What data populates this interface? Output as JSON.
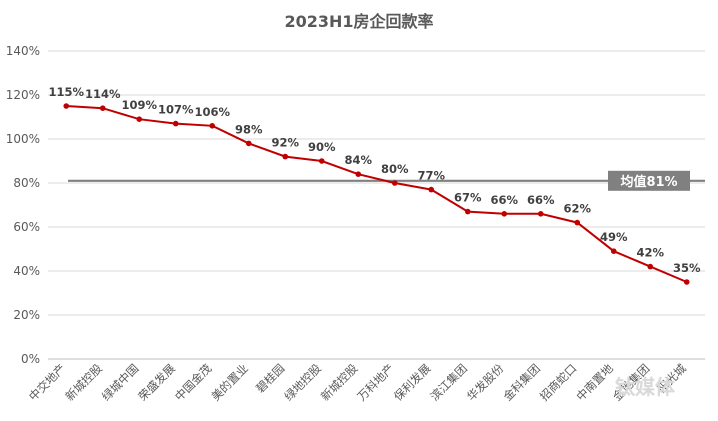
{
  "chart_data": {
    "type": "line",
    "title": "2023H1房企回款率",
    "categories": [
      "中交地产",
      "新城控股",
      "绿城中国",
      "荣盛发展",
      "中国金茂",
      "美的置业",
      "碧桂园",
      "绿地控股",
      "新城控股",
      "万科地产",
      "保利发展",
      "滨江集团",
      "华发股份",
      "金科集团",
      "招商蛇口",
      "中南置地",
      "金地集团",
      "阳光城"
    ],
    "series": [
      {
        "values": [
          115,
          114,
          109,
          107,
          106,
          98,
          92,
          90,
          84,
          80,
          77,
          67,
          66,
          66,
          62,
          49,
          42,
          35
        ],
        "labels": [
          "115%",
          "114%",
          "109%",
          "107%",
          "106%",
          "98%",
          "92%",
          "90%",
          "84%",
          "80%",
          "77%",
          "67%",
          "66%",
          "66%",
          "62%",
          "49%",
          "42%",
          "35%"
        ],
        "color": "#c00000"
      }
    ],
    "average": {
      "value": 81,
      "label": "均值81%",
      "color": "#808080"
    },
    "ylim": [
      0,
      140
    ],
    "yticks": [
      "0%",
      "20%",
      "40%",
      "60%",
      "80%",
      "100%",
      "120%",
      "140%"
    ],
    "ytick_values": [
      0,
      20,
      40,
      60,
      80,
      100,
      120,
      140
    ],
    "grid": true,
    "xlabel": "",
    "ylabel": ""
  },
  "watermark": "钛媒体"
}
